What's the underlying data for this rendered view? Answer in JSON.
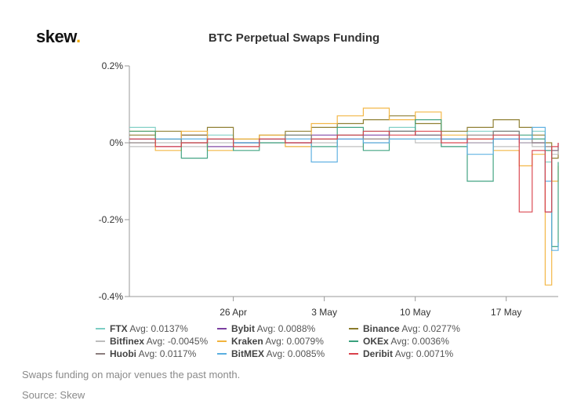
{
  "logo": {
    "text": "skew",
    "dot": "."
  },
  "caption": "Swaps funding on major venues the past month.",
  "source": "Source: Skew",
  "chart_data": {
    "type": "line",
    "title": "BTC Perpetual Swaps Funding",
    "xlabel": "",
    "ylabel": "",
    "x_range": [
      "2020-04-18",
      "2020-05-21"
    ],
    "ylim": [
      -0.4,
      0.2
    ],
    "y_ticks": [
      {
        "value": 0.2,
        "label": "0.2%"
      },
      {
        "value": 0,
        "label": "0%"
      },
      {
        "value": -0.2,
        "label": "-0.2%"
      },
      {
        "value": -0.4,
        "label": "-0.4%"
      }
    ],
    "x_ticks": [
      {
        "date": "2020-04-26",
        "label": "26 Apr"
      },
      {
        "date": "2020-05-03",
        "label": "3 May"
      },
      {
        "date": "2020-05-10",
        "label": "10 May"
      },
      {
        "date": "2020-05-17",
        "label": "17 May"
      }
    ],
    "grid": false,
    "legend_position": "bottom",
    "series": [
      {
        "name": "FTX",
        "avg": "Avg: 0.0137%",
        "color": "#7ccdc4",
        "points": [
          [
            "2020-04-18",
            0.04
          ],
          [
            "2020-04-20",
            0.01
          ],
          [
            "2020-04-22",
            0.0
          ],
          [
            "2020-04-24",
            0.02
          ],
          [
            "2020-04-26",
            0.0
          ],
          [
            "2020-04-28",
            0.01
          ],
          [
            "2020-04-30",
            0.0
          ],
          [
            "2020-05-02",
            0.01
          ],
          [
            "2020-05-04",
            0.02
          ],
          [
            "2020-05-06",
            0.03
          ],
          [
            "2020-05-08",
            0.04
          ],
          [
            "2020-05-10",
            0.02
          ],
          [
            "2020-05-12",
            0.01
          ],
          [
            "2020-05-14",
            0.03
          ],
          [
            "2020-05-16",
            0.02
          ],
          [
            "2020-05-18",
            0.01
          ],
          [
            "2020-05-19",
            0.03
          ],
          [
            "2020-05-20",
            -0.05
          ],
          [
            "2020-05-20.5",
            -0.27
          ],
          [
            "2020-05-21",
            -0.27
          ]
        ]
      },
      {
        "name": "Bybit",
        "avg": "Avg: 0.0088%",
        "color": "#7b3fa0",
        "points": [
          [
            "2020-04-18",
            0.01
          ],
          [
            "2020-04-20",
            -0.01
          ],
          [
            "2020-04-22",
            0.02
          ],
          [
            "2020-04-24",
            -0.01
          ],
          [
            "2020-04-26",
            0.0
          ],
          [
            "2020-04-28",
            0.01
          ],
          [
            "2020-04-30",
            0.0
          ],
          [
            "2020-05-02",
            0.02
          ],
          [
            "2020-05-04",
            0.01
          ],
          [
            "2020-05-06",
            0.02
          ],
          [
            "2020-05-08",
            0.03
          ],
          [
            "2020-05-10",
            0.02
          ],
          [
            "2020-05-12",
            0.01
          ],
          [
            "2020-05-14",
            0.0
          ],
          [
            "2020-05-16",
            0.01
          ],
          [
            "2020-05-18",
            0.0
          ],
          [
            "2020-05-19",
            0.0
          ],
          [
            "2020-05-20",
            -0.18
          ],
          [
            "2020-05-20.5",
            -0.02
          ],
          [
            "2020-05-21",
            0.0
          ]
        ]
      },
      {
        "name": "Binance",
        "avg": "Avg: 0.0277%",
        "color": "#8a7a2a",
        "points": [
          [
            "2020-04-18",
            0.02
          ],
          [
            "2020-04-20",
            0.03
          ],
          [
            "2020-04-22",
            0.02
          ],
          [
            "2020-04-24",
            0.04
          ],
          [
            "2020-04-26",
            0.01
          ],
          [
            "2020-04-28",
            0.02
          ],
          [
            "2020-04-30",
            0.03
          ],
          [
            "2020-05-02",
            0.04
          ],
          [
            "2020-05-04",
            0.05
          ],
          [
            "2020-05-06",
            0.06
          ],
          [
            "2020-05-08",
            0.07
          ],
          [
            "2020-05-10",
            0.05
          ],
          [
            "2020-05-12",
            0.03
          ],
          [
            "2020-05-14",
            0.04
          ],
          [
            "2020-05-16",
            0.06
          ],
          [
            "2020-05-18",
            0.04
          ],
          [
            "2020-05-19",
            0.02
          ],
          [
            "2020-05-20",
            0.0
          ],
          [
            "2020-05-20.5",
            -0.04
          ],
          [
            "2020-05-21",
            -0.02
          ]
        ]
      },
      {
        "name": "Bitfinex",
        "avg": "Avg: -0.0045%",
        "color": "#bdbdbd",
        "points": [
          [
            "2020-04-18",
            -0.01
          ],
          [
            "2020-04-20",
            0.0
          ],
          [
            "2020-04-22",
            -0.01
          ],
          [
            "2020-04-24",
            0.0
          ],
          [
            "2020-04-26",
            -0.01
          ],
          [
            "2020-04-28",
            0.0
          ],
          [
            "2020-04-30",
            -0.01
          ],
          [
            "2020-05-02",
            0.0
          ],
          [
            "2020-05-04",
            -0.01
          ],
          [
            "2020-05-06",
            0.0
          ],
          [
            "2020-05-08",
            0.01
          ],
          [
            "2020-05-10",
            0.0
          ],
          [
            "2020-05-12",
            -0.01
          ],
          [
            "2020-05-14",
            0.0
          ],
          [
            "2020-05-16",
            -0.01
          ],
          [
            "2020-05-18",
            0.0
          ],
          [
            "2020-05-19",
            -0.01
          ],
          [
            "2020-05-20",
            -0.02
          ],
          [
            "2020-05-20.5",
            -0.03
          ],
          [
            "2020-05-21",
            -0.02
          ]
        ]
      },
      {
        "name": "Kraken",
        "avg": "Avg: 0.0079%",
        "color": "#f2b33d",
        "points": [
          [
            "2020-04-18",
            0.03
          ],
          [
            "2020-04-20",
            -0.02
          ],
          [
            "2020-04-22",
            0.03
          ],
          [
            "2020-04-24",
            -0.02
          ],
          [
            "2020-04-26",
            0.01
          ],
          [
            "2020-04-28",
            0.02
          ],
          [
            "2020-04-30",
            -0.01
          ],
          [
            "2020-05-02",
            0.05
          ],
          [
            "2020-05-04",
            0.07
          ],
          [
            "2020-05-06",
            0.09
          ],
          [
            "2020-05-08",
            0.06
          ],
          [
            "2020-05-10",
            0.08
          ],
          [
            "2020-05-12",
            0.02
          ],
          [
            "2020-05-14",
            0.01
          ],
          [
            "2020-05-16",
            -0.02
          ],
          [
            "2020-05-18",
            -0.06
          ],
          [
            "2020-05-19",
            -0.03
          ],
          [
            "2020-05-20",
            -0.37
          ],
          [
            "2020-05-20.5",
            -0.1
          ],
          [
            "2020-05-21",
            -0.06
          ]
        ]
      },
      {
        "name": "OKEx",
        "avg": "Avg: 0.0036%",
        "color": "#3aa07d",
        "points": [
          [
            "2020-04-18",
            0.03
          ],
          [
            "2020-04-20",
            0.01
          ],
          [
            "2020-04-22",
            -0.04
          ],
          [
            "2020-04-24",
            0.01
          ],
          [
            "2020-04-26",
            -0.02
          ],
          [
            "2020-04-28",
            0.0
          ],
          [
            "2020-04-30",
            0.02
          ],
          [
            "2020-05-02",
            -0.01
          ],
          [
            "2020-05-04",
            0.04
          ],
          [
            "2020-05-06",
            -0.02
          ],
          [
            "2020-05-08",
            0.03
          ],
          [
            "2020-05-10",
            0.06
          ],
          [
            "2020-05-12",
            -0.01
          ],
          [
            "2020-05-14",
            -0.1
          ],
          [
            "2020-05-16",
            0.03
          ],
          [
            "2020-05-18",
            0.02
          ],
          [
            "2020-05-19",
            0.01
          ],
          [
            "2020-05-20",
            -0.02
          ],
          [
            "2020-05-20.5",
            -0.27
          ],
          [
            "2020-05-21",
            -0.05
          ]
        ]
      },
      {
        "name": "Huobi",
        "avg": "Avg: 0.0117%",
        "color": "#8c7e7e",
        "points": [
          [
            "2020-04-18",
            0.0
          ],
          [
            "2020-04-20",
            0.01
          ],
          [
            "2020-04-22",
            0.0
          ],
          [
            "2020-04-24",
            0.01
          ],
          [
            "2020-04-26",
            0.0
          ],
          [
            "2020-04-28",
            0.01
          ],
          [
            "2020-04-30",
            0.02
          ],
          [
            "2020-05-02",
            0.01
          ],
          [
            "2020-05-04",
            0.02
          ],
          [
            "2020-05-06",
            0.01
          ],
          [
            "2020-05-08",
            0.03
          ],
          [
            "2020-05-10",
            0.02
          ],
          [
            "2020-05-12",
            0.01
          ],
          [
            "2020-05-14",
            0.02
          ],
          [
            "2020-05-16",
            0.03
          ],
          [
            "2020-05-18",
            0.01
          ],
          [
            "2020-05-19",
            0.0
          ],
          [
            "2020-05-20",
            -0.01
          ],
          [
            "2020-05-20.5",
            -0.02
          ],
          [
            "2020-05-21",
            -0.01
          ]
        ]
      },
      {
        "name": "BitMEX",
        "avg": "Avg: 0.0085%",
        "color": "#5aaee0",
        "points": [
          [
            "2020-04-18",
            0.01
          ],
          [
            "2020-04-20",
            0.01
          ],
          [
            "2020-04-22",
            0.01
          ],
          [
            "2020-04-24",
            0.01
          ],
          [
            "2020-04-26",
            0.0
          ],
          [
            "2020-04-28",
            0.01
          ],
          [
            "2020-04-30",
            0.01
          ],
          [
            "2020-05-02",
            -0.05
          ],
          [
            "2020-05-04",
            0.01
          ],
          [
            "2020-05-06",
            0.0
          ],
          [
            "2020-05-08",
            0.01
          ],
          [
            "2020-05-10",
            0.01
          ],
          [
            "2020-05-12",
            0.01
          ],
          [
            "2020-05-14",
            -0.03
          ],
          [
            "2020-05-16",
            0.01
          ],
          [
            "2020-05-18",
            0.01
          ],
          [
            "2020-05-19",
            0.04
          ],
          [
            "2020-05-20",
            -0.1
          ],
          [
            "2020-05-20.5",
            -0.28
          ],
          [
            "2020-05-21",
            -0.26
          ]
        ]
      },
      {
        "name": "Deribit",
        "avg": "Avg: 0.0071%",
        "color": "#d9414b",
        "points": [
          [
            "2020-04-18",
            0.01
          ],
          [
            "2020-04-20",
            -0.01
          ],
          [
            "2020-04-22",
            0.0
          ],
          [
            "2020-04-24",
            0.01
          ],
          [
            "2020-04-26",
            -0.01
          ],
          [
            "2020-04-28",
            0.01
          ],
          [
            "2020-04-30",
            0.0
          ],
          [
            "2020-05-02",
            0.01
          ],
          [
            "2020-05-04",
            0.02
          ],
          [
            "2020-05-06",
            0.03
          ],
          [
            "2020-05-08",
            0.02
          ],
          [
            "2020-05-10",
            0.03
          ],
          [
            "2020-05-12",
            0.0
          ],
          [
            "2020-05-14",
            0.01
          ],
          [
            "2020-05-16",
            0.02
          ],
          [
            "2020-05-18",
            -0.18
          ],
          [
            "2020-05-19",
            -0.02
          ],
          [
            "2020-05-20",
            -0.18
          ],
          [
            "2020-05-20.5",
            -0.01
          ],
          [
            "2020-05-21",
            0.0
          ]
        ]
      }
    ]
  }
}
